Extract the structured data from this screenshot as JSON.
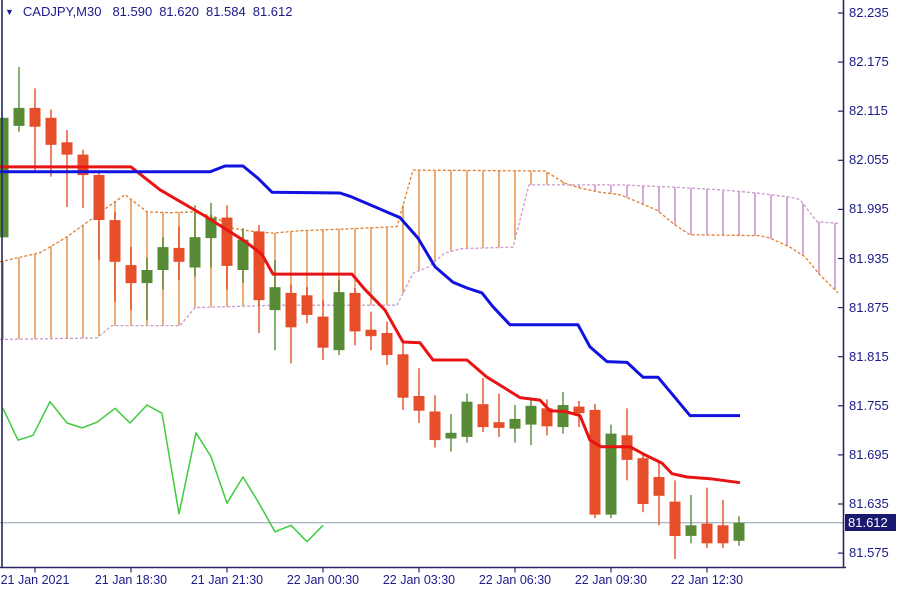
{
  "header": {
    "symbol_timeframe": "CADJPY,M30",
    "open": "81.590",
    "high": "81.620",
    "low": "81.584",
    "close": "81.612"
  },
  "price_marker": {
    "label": "81.612",
    "price": 81.612
  },
  "colors": {
    "background": "#ffffff",
    "axis_text": "#1b1b8a",
    "axis_line": "#262660",
    "bull_candle": "#578b37",
    "bear_candle": "#e64d29",
    "tenkan_line": "#e81414",
    "kijun_line": "#1212e0",
    "chikou_line": "#3ecc3e",
    "senkou_a": "#e08030",
    "senkou_b": "#cc9acc",
    "cloud_bull_hatch": "#f0ac72",
    "cloud_bear_hatch": "#d8a8d8",
    "current_price_line": "#90a0b0",
    "badge_bg": "#191970",
    "badge_text": "#ffffff"
  },
  "chart_data": {
    "type": "candlestick",
    "symbol": "CADJPY",
    "timeframe": "M30",
    "title": "CADJPY,M30",
    "current_bar": {
      "open": 81.59,
      "high": 81.62,
      "low": 81.584,
      "close": 81.612
    },
    "current_price": 81.612,
    "ylim": [
      81.545,
      82.251
    ],
    "y_ticks": [
      "82.235",
      "82.175",
      "82.115",
      "82.055",
      "81.995",
      "81.935",
      "81.875",
      "81.815",
      "81.755",
      "81.695",
      "81.635",
      "81.575"
    ],
    "x_labels": [
      "21 Jan 2021",
      "21 Jan 18:30",
      "21 Jan 21:30",
      "22 Jan 00:30",
      "22 Jan 03:30",
      "22 Jan 06:30",
      "22 Jan 09:30",
      "22 Jan 12:30"
    ],
    "grid": false,
    "candles_format": [
      "open",
      "high",
      "low",
      "close"
    ],
    "candles": [
      [
        81.961,
        82.107,
        81.961,
        82.107
      ],
      [
        82.097,
        82.169,
        82.09,
        82.119
      ],
      [
        82.119,
        82.143,
        82.043,
        82.096
      ],
      [
        82.107,
        82.117,
        82.035,
        82.074
      ],
      [
        82.077,
        82.092,
        81.998,
        82.062
      ],
      [
        82.062,
        82.068,
        81.997,
        82.037
      ],
      [
        82.037,
        82.043,
        81.933,
        81.982
      ],
      [
        81.982,
        81.992,
        81.882,
        81.931
      ],
      [
        81.927,
        81.949,
        81.872,
        81.905
      ],
      [
        81.905,
        81.936,
        81.86,
        81.921
      ],
      [
        81.921,
        81.961,
        81.897,
        81.949
      ],
      [
        81.948,
        81.974,
        81.909,
        81.931
      ],
      [
        81.924,
        82.0,
        81.913,
        81.961
      ],
      [
        81.96,
        82.003,
        81.924,
        81.985
      ],
      [
        81.985,
        82.0,
        81.897,
        81.926
      ],
      [
        81.921,
        81.972,
        81.905,
        81.958
      ],
      [
        81.968,
        81.976,
        81.844,
        81.884
      ],
      [
        81.872,
        81.933,
        81.823,
        81.9
      ],
      [
        81.893,
        81.903,
        81.807,
        81.851
      ],
      [
        81.89,
        81.9,
        81.856,
        81.866
      ],
      [
        81.864,
        81.884,
        81.811,
        81.826
      ],
      [
        81.823,
        81.909,
        81.817,
        81.894
      ],
      [
        81.893,
        81.899,
        81.829,
        81.846
      ],
      [
        81.848,
        81.87,
        81.823,
        81.84
      ],
      [
        81.844,
        81.858,
        81.805,
        81.817
      ],
      [
        81.818,
        81.836,
        81.75,
        81.765
      ],
      [
        81.767,
        81.801,
        81.734,
        81.749
      ],
      [
        81.748,
        81.768,
        81.704,
        81.713
      ],
      [
        81.715,
        81.745,
        81.699,
        81.722
      ],
      [
        81.717,
        81.77,
        81.71,
        81.76
      ],
      [
        81.757,
        81.789,
        81.723,
        81.729
      ],
      [
        81.735,
        81.77,
        81.717,
        81.728
      ],
      [
        81.727,
        81.756,
        81.71,
        81.739
      ],
      [
        81.732,
        81.765,
        81.707,
        81.755
      ],
      [
        81.752,
        81.763,
        81.719,
        81.73
      ],
      [
        81.729,
        81.772,
        81.721,
        81.756
      ],
      [
        81.754,
        81.761,
        81.729,
        81.746
      ],
      [
        81.75,
        81.757,
        81.618,
        81.622
      ],
      [
        81.622,
        81.732,
        81.618,
        81.721
      ],
      [
        81.719,
        81.752,
        81.664,
        81.689
      ],
      [
        81.691,
        81.697,
        81.625,
        81.635
      ],
      [
        81.668,
        81.686,
        81.609,
        81.645
      ],
      [
        81.638,
        81.664,
        81.568,
        81.596
      ],
      [
        81.596,
        81.646,
        81.587,
        81.609
      ],
      [
        81.611,
        81.655,
        81.581,
        81.587
      ],
      [
        81.609,
        81.64,
        81.581,
        81.587
      ],
      [
        81.59,
        81.62,
        81.584,
        81.612
      ]
    ],
    "series": {
      "tenkan": [
        [
          0,
          82.047
        ],
        [
          131,
          82.047
        ],
        [
          160,
          82.019
        ],
        [
          205,
          81.987
        ],
        [
          245,
          81.956
        ],
        [
          262,
          81.94
        ],
        [
          273,
          81.916
        ],
        [
          352,
          81.916
        ],
        [
          365,
          81.897
        ],
        [
          385,
          81.872
        ],
        [
          403,
          81.833
        ],
        [
          420,
          81.832
        ],
        [
          433,
          81.811
        ],
        [
          467,
          81.811
        ],
        [
          487,
          81.79
        ],
        [
          503,
          81.778
        ],
        [
          520,
          81.765
        ],
        [
          540,
          81.762
        ],
        [
          550,
          81.749
        ],
        [
          565,
          81.748
        ],
        [
          580,
          81.743
        ],
        [
          590,
          81.713
        ],
        [
          601,
          81.705
        ],
        [
          630,
          81.705
        ],
        [
          645,
          81.695
        ],
        [
          662,
          81.685
        ],
        [
          672,
          81.672
        ],
        [
          687,
          81.668
        ],
        [
          710,
          81.666
        ],
        [
          740,
          81.661
        ]
      ],
      "kijun": [
        [
          0,
          82.041
        ],
        [
          210,
          82.041
        ],
        [
          225,
          82.048
        ],
        [
          243,
          82.048
        ],
        [
          258,
          82.033
        ],
        [
          272,
          82.016
        ],
        [
          340,
          82.015
        ],
        [
          350,
          82.011
        ],
        [
          400,
          81.985
        ],
        [
          418,
          81.96
        ],
        [
          435,
          81.925
        ],
        [
          453,
          81.906
        ],
        [
          467,
          81.899
        ],
        [
          482,
          81.893
        ],
        [
          493,
          81.876
        ],
        [
          510,
          81.854
        ],
        [
          578,
          81.854
        ],
        [
          590,
          81.827
        ],
        [
          607,
          81.809
        ],
        [
          627,
          81.808
        ],
        [
          643,
          81.79
        ],
        [
          658,
          81.79
        ],
        [
          675,
          81.765
        ],
        [
          690,
          81.743
        ],
        [
          740,
          81.743
        ]
      ],
      "chikou": [
        [
          3,
          81.752
        ],
        [
          18,
          81.713
        ],
        [
          33,
          81.719
        ],
        [
          50,
          81.76
        ],
        [
          67,
          81.734
        ],
        [
          82,
          81.728
        ],
        [
          97,
          81.735
        ],
        [
          115,
          81.752
        ],
        [
          130,
          81.734
        ],
        [
          147,
          81.756
        ],
        [
          162,
          81.746
        ],
        [
          179,
          81.623
        ],
        [
          196,
          81.722
        ],
        [
          211,
          81.693
        ],
        [
          227,
          81.636
        ],
        [
          243,
          81.668
        ],
        [
          259,
          81.636
        ],
        [
          275,
          81.601
        ],
        [
          291,
          81.609
        ],
        [
          307,
          81.589
        ],
        [
          323,
          81.609
        ]
      ],
      "senkou_a": [
        [
          0,
          81.931
        ],
        [
          40,
          81.942
        ],
        [
          65,
          81.96
        ],
        [
          88,
          81.98
        ],
        [
          110,
          82.0
        ],
        [
          125,
          82.013
        ],
        [
          147,
          81.992
        ],
        [
          170,
          81.991
        ],
        [
          193,
          81.992
        ],
        [
          215,
          81.986
        ],
        [
          232,
          81.972
        ],
        [
          253,
          81.968
        ],
        [
          273,
          81.966
        ],
        [
          300,
          81.969
        ],
        [
          343,
          81.971
        ],
        [
          397,
          81.974
        ],
        [
          413,
          82.043
        ],
        [
          545,
          82.042
        ],
        [
          565,
          82.027
        ],
        [
          580,
          82.021
        ],
        [
          600,
          82.016
        ],
        [
          620,
          82.013
        ],
        [
          638,
          82.004
        ],
        [
          657,
          81.994
        ],
        [
          675,
          81.976
        ],
        [
          690,
          81.964
        ],
        [
          760,
          81.963
        ],
        [
          770,
          81.96
        ],
        [
          790,
          81.949
        ],
        [
          805,
          81.937
        ],
        [
          820,
          81.915
        ],
        [
          838,
          81.893
        ]
      ],
      "senkou_b": [
        [
          0,
          81.836
        ],
        [
          97,
          81.838
        ],
        [
          112,
          81.853
        ],
        [
          180,
          81.853
        ],
        [
          195,
          81.875
        ],
        [
          280,
          81.878
        ],
        [
          397,
          81.878
        ],
        [
          413,
          81.917
        ],
        [
          429,
          81.925
        ],
        [
          445,
          81.942
        ],
        [
          461,
          81.947
        ],
        [
          513,
          81.949
        ],
        [
          529,
          82.025
        ],
        [
          620,
          82.025
        ],
        [
          677,
          82.022
        ],
        [
          720,
          82.019
        ],
        [
          757,
          82.015
        ],
        [
          790,
          82.01
        ],
        [
          800,
          82.007
        ],
        [
          817,
          81.98
        ],
        [
          838,
          81.978
        ]
      ]
    }
  }
}
